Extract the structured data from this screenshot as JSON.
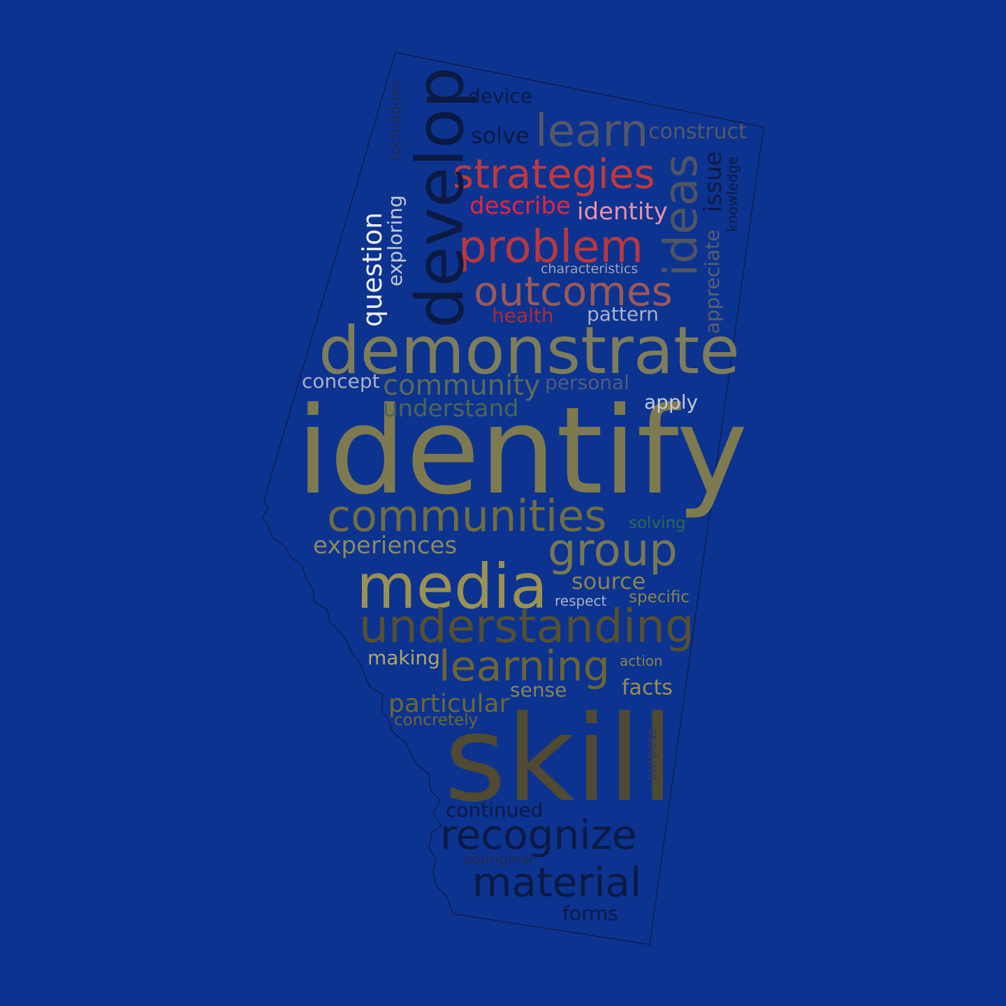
{
  "background": "#0d3390",
  "shape": "alberta-outline",
  "words": [
    {
      "text": "identify",
      "color": "#7e7a50"
    },
    {
      "text": "skill",
      "color": "#4f4a31"
    },
    {
      "text": "demonstrate",
      "color": "#7e7d5b"
    },
    {
      "text": "develop",
      "color": "#0b1a42"
    },
    {
      "text": "media",
      "color": "#9a9152"
    },
    {
      "text": "understanding",
      "color": "#57502f"
    },
    {
      "text": "communities",
      "color": "#706d40"
    },
    {
      "text": "strategies",
      "color": "#c0393d"
    },
    {
      "text": "problem",
      "color": "#b8383e"
    },
    {
      "text": "outcomes",
      "color": "#9a5a55"
    },
    {
      "text": "learn",
      "color": "#545866"
    },
    {
      "text": "learning",
      "color": "#6e6530"
    },
    {
      "text": "group",
      "color": "#777853"
    },
    {
      "text": "recognize",
      "color": "#0b1a42"
    },
    {
      "text": "material",
      "color": "#0b1a42"
    },
    {
      "text": "ideas",
      "color": "#4e5563"
    },
    {
      "text": "community",
      "color": "#5b6a5a"
    },
    {
      "text": "question",
      "color": "#eef0f5"
    },
    {
      "text": "understand",
      "color": "#4e6552"
    },
    {
      "text": "experiences",
      "color": "#8a8a5e"
    },
    {
      "text": "source",
      "color": "#8a8450"
    },
    {
      "text": "particular",
      "color": "#6e6930"
    },
    {
      "text": "identity",
      "color": "#ee8fa6"
    },
    {
      "text": "describe",
      "color": "#e5263a"
    },
    {
      "text": "construct",
      "color": "#545866"
    },
    {
      "text": "solve",
      "color": "#0b1a42"
    },
    {
      "text": "device",
      "color": "#0b1a42"
    },
    {
      "text": "issue",
      "color": "#0b1a42"
    },
    {
      "text": "apply",
      "color": "#c4cad6"
    },
    {
      "text": "pattern",
      "color": "#aab2c4"
    },
    {
      "text": "personal",
      "color": "#4e5d7e"
    },
    {
      "text": "concept",
      "color": "#aab2c4"
    },
    {
      "text": "health",
      "color": "#aa2d3c"
    },
    {
      "text": "appreciate",
      "color": "#5b5f6b"
    },
    {
      "text": "exploring",
      "color": "#c4cad6"
    },
    {
      "text": "techniques",
      "color": "#202a52"
    },
    {
      "text": "knowledge",
      "color": "#0b1a42"
    },
    {
      "text": "characteristics",
      "color": "#9aa2b8"
    },
    {
      "text": "solving",
      "color": "#2e6a4e"
    },
    {
      "text": "specific",
      "color": "#8a8450"
    },
    {
      "text": "respect",
      "color": "#aab2c4"
    },
    {
      "text": "making",
      "color": "#b0a860"
    },
    {
      "text": "action",
      "color": "#8a8450"
    },
    {
      "text": "facts",
      "color": "#9a9050"
    },
    {
      "text": "sense",
      "color": "#8a8450"
    },
    {
      "text": "concretely",
      "color": "#6e6930"
    },
    {
      "text": "purpose",
      "color": "#303a5a"
    },
    {
      "text": "continued",
      "color": "#0b1a42"
    },
    {
      "text": "aboriginal",
      "color": "#202a52"
    },
    {
      "text": "forms",
      "color": "#0b1a42"
    }
  ]
}
